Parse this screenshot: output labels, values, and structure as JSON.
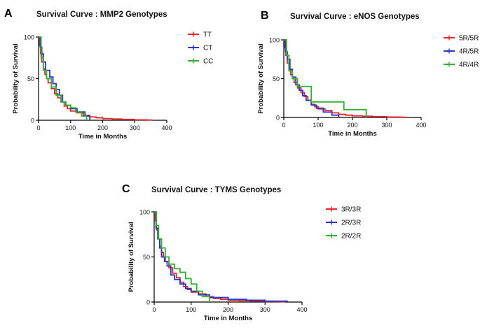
{
  "figure": {
    "panel_letters": [
      "A",
      "B",
      "C"
    ]
  },
  "colors": {
    "red": "#e8242a",
    "blue": "#2b35c8",
    "green": "#2fb12a",
    "axis": "#000000"
  },
  "chart_data": [
    {
      "type": "line",
      "panel": "A",
      "title": "Survival Curve : MMP2 Genotypes",
      "xlabel": "Time in Months",
      "ylabel": "Probability of Survival",
      "xlim": [
        0,
        400
      ],
      "ylim": [
        0,
        100
      ],
      "xticks": [
        "0",
        "100",
        "200",
        "300",
        "400"
      ],
      "yticks": [
        "0",
        "50",
        "100"
      ],
      "legend_position": "right",
      "series": [
        {
          "name": "TT",
          "color": "#e8242a",
          "step": true,
          "x": [
            0,
            3,
            6,
            10,
            15,
            20,
            25,
            30,
            40,
            50,
            60,
            70,
            80,
            90,
            100,
            120,
            140,
            160,
            180,
            200,
            230,
            260,
            300,
            340,
            355
          ],
          "y": [
            100,
            90,
            80,
            70,
            62,
            55,
            50,
            45,
            38,
            32,
            27,
            22,
            17,
            14,
            11,
            9,
            6,
            4,
            3,
            2,
            1.5,
            1,
            0.5,
            0.3,
            0.3
          ]
        },
        {
          "name": "CT",
          "color": "#2b35c8",
          "step": true,
          "x": [
            0,
            5,
            10,
            15,
            22,
            28,
            35,
            45,
            55,
            65,
            75,
            85,
            100,
            120,
            145,
            160
          ],
          "y": [
            100,
            88,
            80,
            70,
            60,
            60,
            52,
            44,
            37,
            30,
            22,
            18,
            14,
            10,
            5,
            0
          ]
        },
        {
          "name": "CC",
          "color": "#2fb12a",
          "step": true,
          "x": [
            0,
            8,
            15,
            25,
            40,
            55,
            70,
            85,
            100,
            115,
            135,
            150
          ],
          "y": [
            100,
            75,
            60,
            50,
            40,
            30,
            22,
            18,
            15,
            10,
            5,
            0
          ]
        }
      ]
    },
    {
      "type": "line",
      "panel": "B",
      "title": "Survival Curve : eNOS Genotypes",
      "xlabel": "Time in Months",
      "ylabel": "Probability of Survival",
      "xlim": [
        0,
        400
      ],
      "ylim": [
        0,
        100
      ],
      "xticks": [
        "0",
        "100",
        "200",
        "300",
        "400"
      ],
      "yticks": [
        "0",
        "50",
        "100"
      ],
      "legend_position": "right",
      "series": [
        {
          "name": "5R/5R",
          "color": "#e8242a",
          "step": true,
          "x": [
            0,
            3,
            6,
            10,
            15,
            20,
            25,
            30,
            40,
            50,
            60,
            70,
            80,
            90,
            100,
            120,
            140,
            160,
            180,
            200,
            230,
            260,
            300,
            340,
            355
          ],
          "y": [
            100,
            90,
            80,
            70,
            62,
            55,
            50,
            45,
            38,
            32,
            27,
            22,
            17,
            14,
            11,
            9,
            6,
            4,
            3,
            2,
            1.5,
            1,
            0.5,
            0.3,
            0.3
          ]
        },
        {
          "name": "4R/5R",
          "color": "#2b35c8",
          "step": true,
          "x": [
            0,
            5,
            10,
            18,
            25,
            35,
            45,
            55,
            65,
            80,
            95,
            115,
            140,
            160
          ],
          "y": [
            100,
            85,
            75,
            62,
            52,
            42,
            35,
            28,
            22,
            16,
            12,
            7,
            3,
            0
          ]
        },
        {
          "name": "4R/4R",
          "color": "#2fb12a",
          "step": true,
          "x": [
            0,
            8,
            15,
            25,
            40,
            60,
            80,
            130,
            175,
            240,
            240
          ],
          "y": [
            100,
            80,
            60,
            50,
            40,
            40,
            20,
            20,
            10,
            10,
            0
          ]
        }
      ]
    },
    {
      "type": "line",
      "panel": "C",
      "title": "Survival Curve : TYMS Genotypes",
      "xlabel": "Time in Months",
      "ylabel": "Probability of Survival",
      "xlim": [
        0,
        400
      ],
      "ylim": [
        0,
        100
      ],
      "xticks": [
        "0",
        "100",
        "200",
        "300",
        "400"
      ],
      "yticks": [
        "0",
        "50",
        "100"
      ],
      "legend_position": "right",
      "series": [
        {
          "name": "3R/3R",
          "color": "#e8242a",
          "step": true,
          "x": [
            0,
            3,
            6,
            10,
            15,
            20,
            25,
            30,
            40,
            50,
            60,
            70,
            80,
            90,
            100,
            120,
            140,
            160,
            180,
            200,
            230,
            260,
            300,
            340,
            355
          ],
          "y": [
            100,
            90,
            80,
            70,
            62,
            55,
            50,
            45,
            38,
            32,
            27,
            22,
            17,
            14,
            11,
            9,
            6,
            4,
            3,
            2,
            1.5,
            1,
            0.5,
            0.3,
            0.3
          ]
        },
        {
          "name": "2R/3R",
          "color": "#2b35c8",
          "step": true,
          "x": [
            0,
            5,
            10,
            15,
            20,
            28,
            35,
            45,
            55,
            70,
            85,
            100,
            120,
            150,
            200,
            250,
            300,
            360
          ],
          "y": [
            100,
            82,
            70,
            60,
            50,
            45,
            40,
            30,
            25,
            20,
            15,
            12,
            8,
            5,
            3,
            2,
            1,
            0
          ]
        },
        {
          "name": "2R/2R",
          "color": "#2fb12a",
          "step": true,
          "x": [
            0,
            6,
            12,
            20,
            30,
            40,
            55,
            70,
            85,
            100,
            115,
            130,
            150
          ],
          "y": [
            100,
            85,
            70,
            60,
            50,
            42,
            37,
            33,
            26,
            20,
            12,
            6,
            0
          ]
        }
      ]
    }
  ]
}
